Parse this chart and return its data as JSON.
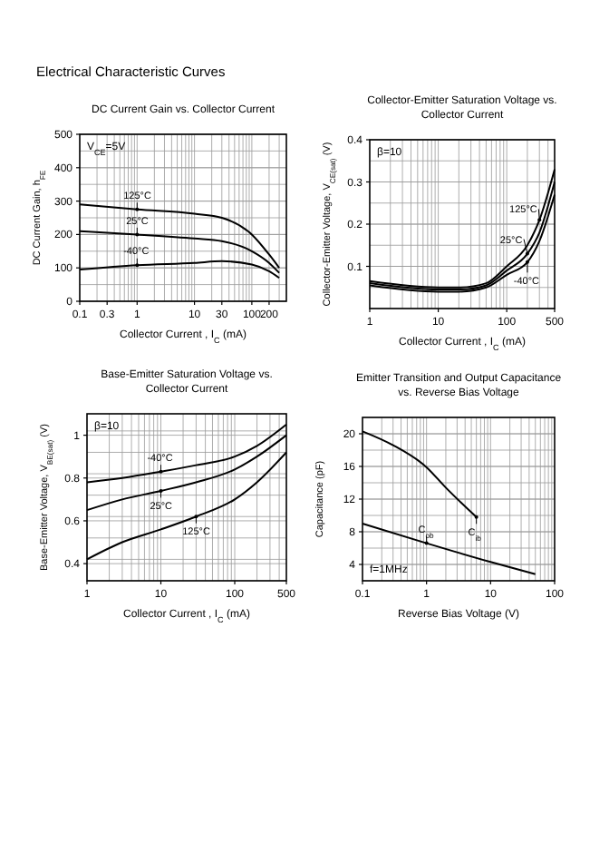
{
  "chart_data": [
    {
      "type": "line",
      "title": "Electrical Characteristic Curves",
      "subtitle": "DC Current Gain vs. Collector Current",
      "xlabel": "Collector Current , I$_{C}$ (mA)",
      "ylabel": "DC Current Gain, h$_{FE}$",
      "log": "x",
      "grid": true,
      "xlim": [
        0.1,
        400
      ],
      "xticks": [
        0.1,
        0.3,
        1,
        10,
        30,
        100,
        200
      ],
      "ylim": [
        0,
        500
      ],
      "yticks": [
        0,
        100,
        200,
        300,
        400,
        500
      ],
      "series": [
        {
          "color": "#000000",
          "x": [
            0.1,
            1,
            10,
            30,
            100,
            200,
            300
          ],
          "values": [
            290,
            275,
            262,
            250,
            200,
            140,
            100
          ]
        },
        {
          "color": "#000000",
          "x": [
            0.1,
            1,
            10,
            30,
            100,
            200,
            300
          ],
          "values": [
            210,
            200,
            188,
            180,
            150,
            115,
            85
          ]
        },
        {
          "color": "#000000",
          "x": [
            0.1,
            1,
            10,
            30,
            100,
            200,
            300
          ],
          "values": [
            95,
            108,
            115,
            120,
            110,
            90,
            70
          ]
        }
      ],
      "annotations": [
        "V$_{CE}$=5V",
        {
          "text": "125°C",
          "x": 1,
          "y": 275
        },
        {
          "text": "25°C",
          "x": 1,
          "y": 200
        },
        {
          "text": "-40°C",
          "x": 1,
          "y": 108
        }
      ]
    },
    {
      "type": "line",
      "title": "Collector-Emitter Saturation Voltage vs. Collector Current",
      "xlabel": "Collector Current , I$_{C}$ (mA)",
      "ylabel": "Collector-Emitter Voltage, V$_{CE(sat)}$ (V)",
      "log": "x",
      "grid": true,
      "xlim": [
        1,
        500
      ],
      "xticks": [
        1,
        10,
        100,
        500
      ],
      "ylim": [
        0,
        0.4
      ],
      "yticks": [
        0.1,
        0.2,
        0.3,
        0.4
      ],
      "series": [
        {
          "color": "#000000",
          "x": [
            1,
            10,
            20,
            50,
            100,
            200,
            300,
            500
          ],
          "values": [
            0.065,
            0.05,
            0.05,
            0.06,
            0.1,
            0.15,
            0.21,
            0.33
          ]
        },
        {
          "color": "#000000",
          "x": [
            1,
            10,
            20,
            50,
            100,
            200,
            300,
            500
          ],
          "values": [
            0.06,
            0.045,
            0.045,
            0.055,
            0.09,
            0.13,
            0.18,
            0.3
          ]
        },
        {
          "color": "#000000",
          "x": [
            1,
            10,
            20,
            50,
            100,
            200,
            300,
            500
          ],
          "values": [
            0.055,
            0.04,
            0.04,
            0.05,
            0.08,
            0.11,
            0.16,
            0.27
          ]
        }
      ],
      "annotations": [
        "β=10",
        {
          "text": "125°C",
          "x": 300,
          "y": 0.21
        },
        {
          "text": "25°C",
          "x": 200,
          "y": 0.13
        },
        {
          "text": "-40°C",
          "x": 200,
          "y": 0.11
        }
      ]
    },
    {
      "type": "line",
      "title": "Base-Emitter Saturation Voltage vs. Collector Current",
      "xlabel": "Collector Current , I$_{C}$ (mA)",
      "ylabel": "Base-Emitter Voltage, V$_{BE(sat)}$ (V)",
      "log": "x",
      "grid": true,
      "xlim": [
        1,
        500
      ],
      "xticks": [
        1,
        10,
        100,
        500
      ],
      "ylim": [
        0.32,
        1.1
      ],
      "yticks": [
        0.4,
        0.6,
        0.8,
        1
      ],
      "series": [
        {
          "color": "#000000",
          "x": [
            1,
            3,
            10,
            30,
            100,
            200,
            500
          ],
          "values": [
            0.78,
            0.8,
            0.83,
            0.86,
            0.9,
            0.95,
            1.05
          ]
        },
        {
          "color": "#000000",
          "x": [
            1,
            3,
            10,
            30,
            100,
            200,
            500
          ],
          "values": [
            0.65,
            0.7,
            0.74,
            0.78,
            0.84,
            0.9,
            1.0
          ]
        },
        {
          "color": "#000000",
          "x": [
            1,
            3,
            10,
            30,
            100,
            200,
            500
          ],
          "values": [
            0.42,
            0.5,
            0.56,
            0.62,
            0.7,
            0.78,
            0.92
          ]
        }
      ],
      "annotations": [
        "β=10",
        {
          "text": "-40°C",
          "x": 10,
          "y": 0.83
        },
        {
          "text": "25°C",
          "x": 10,
          "y": 0.74
        },
        {
          "text": "125°C",
          "x": 30,
          "y": 0.62
        }
      ]
    },
    {
      "type": "line",
      "title": "Emitter Transition and Output Capacitance vs. Reverse Bias Voltage",
      "xlabel": "Reverse Bias Voltage  (V)",
      "ylabel": "Capacitance  (pF)",
      "log": "x",
      "grid": true,
      "xlim": [
        0.1,
        100
      ],
      "xticks": [
        0.1,
        1,
        10,
        100
      ],
      "ylim": [
        2,
        22
      ],
      "yticks": [
        4,
        8,
        12,
        16,
        20
      ],
      "series": [
        {
          "color": "#000000",
          "x": [
            0.1,
            0.3,
            1,
            2,
            6
          ],
          "values": [
            20.3,
            18.6,
            15.9,
            13.4,
            9.8
          ]
        },
        {
          "color": "#000000",
          "x": [
            0.1,
            1,
            10,
            50
          ],
          "values": [
            9,
            6.6,
            4.3,
            2.8
          ]
        }
      ],
      "annotations": [
        {
          "text": "C$_{ib}$",
          "x": 6,
          "y": 9.8
        },
        {
          "text": "C$_{ob}$",
          "x": 1,
          "y": 6.6
        },
        "f=1MHz"
      ]
    }
  ]
}
